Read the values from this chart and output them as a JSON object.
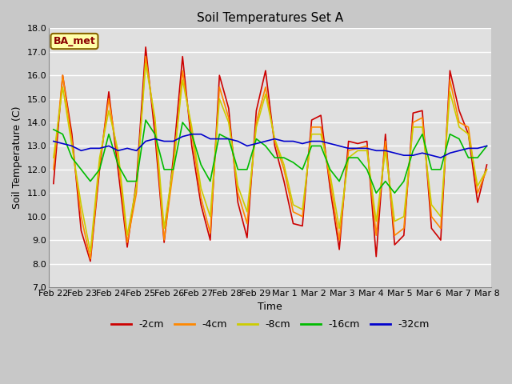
{
  "title": "Soil Temperatures Set A",
  "xlabel": "Time",
  "ylabel": "Soil Temperature (C)",
  "ylim": [
    7.0,
    18.0
  ],
  "yticks": [
    7.0,
    8.0,
    9.0,
    10.0,
    11.0,
    12.0,
    13.0,
    14.0,
    15.0,
    16.0,
    17.0,
    18.0
  ],
  "x_labels": [
    "Feb 22",
    "Feb 23",
    "Feb 24",
    "Feb 25",
    "Feb 26",
    "Feb 27",
    "Feb 28",
    "Feb 29",
    "Mar 1",
    "Mar 2",
    "Mar 3",
    "Mar 4",
    "Mar 5",
    "Mar 6",
    "Mar 7",
    "Mar 8"
  ],
  "fig_bg_color": "#c8c8c8",
  "plot_bg_color": "#e0e0e0",
  "grid_color": "#ffffff",
  "legend_label": "BA_met",
  "series_order": [
    "-2cm",
    "-4cm",
    "-8cm",
    "-16cm",
    "-32cm"
  ],
  "series": {
    "-2cm": {
      "color": "#cc0000",
      "linewidth": 1.2
    },
    "-4cm": {
      "color": "#ff8800",
      "linewidth": 1.2
    },
    "-8cm": {
      "color": "#cccc00",
      "linewidth": 1.2
    },
    "-16cm": {
      "color": "#00bb00",
      "linewidth": 1.2
    },
    "-32cm": {
      "color": "#0000cc",
      "linewidth": 1.2
    }
  },
  "data": {
    "-2cm": [
      11.4,
      16.0,
      13.5,
      9.4,
      8.1,
      12.0,
      15.3,
      12.0,
      8.7,
      11.5,
      17.2,
      13.5,
      8.9,
      12.5,
      16.8,
      13.0,
      10.5,
      9.0,
      16.0,
      14.6,
      10.6,
      9.1,
      14.5,
      16.2,
      13.0,
      11.5,
      9.7,
      9.6,
      14.1,
      14.3,
      11.2,
      8.6,
      13.2,
      13.1,
      13.2,
      8.3,
      13.5,
      8.8,
      9.2,
      14.4,
      14.5,
      9.5,
      9.0,
      16.2,
      14.5,
      13.5,
      10.6,
      12.2
    ],
    "-4cm": [
      12.0,
      16.0,
      13.2,
      10.0,
      8.2,
      12.2,
      15.0,
      12.5,
      8.9,
      11.0,
      16.8,
      14.0,
      9.0,
      12.0,
      16.2,
      13.5,
      10.8,
      9.3,
      15.5,
      14.2,
      11.0,
      9.7,
      14.0,
      15.5,
      13.2,
      12.0,
      10.2,
      10.0,
      13.8,
      13.8,
      11.5,
      9.0,
      12.8,
      12.9,
      13.0,
      9.2,
      13.2,
      9.2,
      9.5,
      14.0,
      14.2,
      10.0,
      9.5,
      15.8,
      14.0,
      13.8,
      11.0,
      12.0
    ],
    "-8cm": [
      12.5,
      15.5,
      13.0,
      10.5,
      8.5,
      12.5,
      14.5,
      12.8,
      9.2,
      11.3,
      16.5,
      14.2,
      9.5,
      12.2,
      15.8,
      13.8,
      11.2,
      10.0,
      15.0,
      14.0,
      11.3,
      10.2,
      13.8,
      15.2,
      13.3,
      12.2,
      10.5,
      10.3,
      13.5,
      13.5,
      11.8,
      9.5,
      12.5,
      12.8,
      12.8,
      9.8,
      12.8,
      9.8,
      10.0,
      13.8,
      13.8,
      10.5,
      10.0,
      15.3,
      13.8,
      13.5,
      11.3,
      12.0
    ],
    "-16cm": [
      13.7,
      13.5,
      12.5,
      12.0,
      11.5,
      12.0,
      13.5,
      12.2,
      11.5,
      11.5,
      14.1,
      13.5,
      12.0,
      12.0,
      14.0,
      13.5,
      12.2,
      11.5,
      13.5,
      13.3,
      12.0,
      12.0,
      13.3,
      13.0,
      12.5,
      12.5,
      12.3,
      12.0,
      13.0,
      13.0,
      12.0,
      11.5,
      12.5,
      12.5,
      12.0,
      11.0,
      11.5,
      11.0,
      11.5,
      12.8,
      13.5,
      12.0,
      12.0,
      13.5,
      13.3,
      12.5,
      12.5,
      13.0
    ],
    "-32cm": [
      13.2,
      13.1,
      13.0,
      12.8,
      12.9,
      12.9,
      13.0,
      12.8,
      12.9,
      12.8,
      13.2,
      13.3,
      13.2,
      13.2,
      13.4,
      13.5,
      13.5,
      13.3,
      13.3,
      13.3,
      13.2,
      13.0,
      13.1,
      13.2,
      13.3,
      13.2,
      13.2,
      13.1,
      13.2,
      13.2,
      13.1,
      13.0,
      12.9,
      12.9,
      12.9,
      12.8,
      12.8,
      12.7,
      12.6,
      12.6,
      12.7,
      12.6,
      12.5,
      12.7,
      12.8,
      12.9,
      12.9,
      13.0
    ]
  },
  "title_fontsize": 11,
  "axis_label_fontsize": 9,
  "tick_fontsize": 8,
  "legend_fontsize": 9
}
